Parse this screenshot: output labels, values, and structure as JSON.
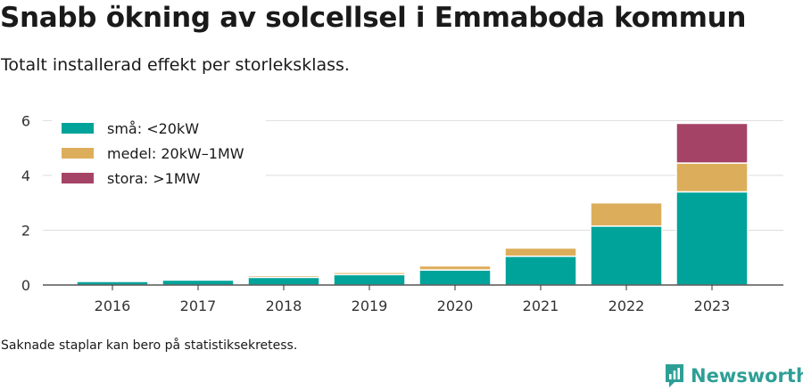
{
  "header": {
    "title": "Snabb ökning av solcellsel i Emmaboda kommun",
    "subtitle": "Totalt installerad effekt per storleksklass."
  },
  "footer": {
    "note": "Saknade staplar kan bero på statistiksekretess.",
    "brand": "Newsworthy",
    "brand_icon": "newsworthy-logo-icon"
  },
  "colors": {
    "small": "#00a39a",
    "medium": "#dcae5b",
    "large": "#a54367",
    "grid": "#dddddd",
    "axis": "#333333"
  },
  "chart_data": {
    "type": "bar",
    "stacked": true,
    "title": "Snabb ökning av solcellsel i Emmaboda kommun",
    "subtitle": "Totalt installerad effekt per storleksklass.",
    "xlabel": "",
    "ylabel": "",
    "ylim": [
      0,
      6.5
    ],
    "yticks": [
      0,
      2,
      4,
      6
    ],
    "grid": true,
    "legend_position": "top-left",
    "categories": [
      "2016",
      "2017",
      "2018",
      "2019",
      "2020",
      "2021",
      "2022",
      "2023"
    ],
    "series": [
      {
        "name": "små: <20kW",
        "color": "#00a39a",
        "values": [
          0.13,
          0.18,
          0.28,
          0.38,
          0.55,
          1.05,
          2.15,
          3.4
        ]
      },
      {
        "name": "medel: 20kW–1MW",
        "color": "#dcae5b",
        "values": [
          0.0,
          0.0,
          0.07,
          0.08,
          0.15,
          0.3,
          0.85,
          1.05
        ]
      },
      {
        "name": "stora: >1MW",
        "color": "#a54367",
        "values": [
          0.0,
          0.0,
          0.0,
          0.0,
          0.0,
          0.0,
          0.0,
          1.45
        ]
      }
    ]
  }
}
